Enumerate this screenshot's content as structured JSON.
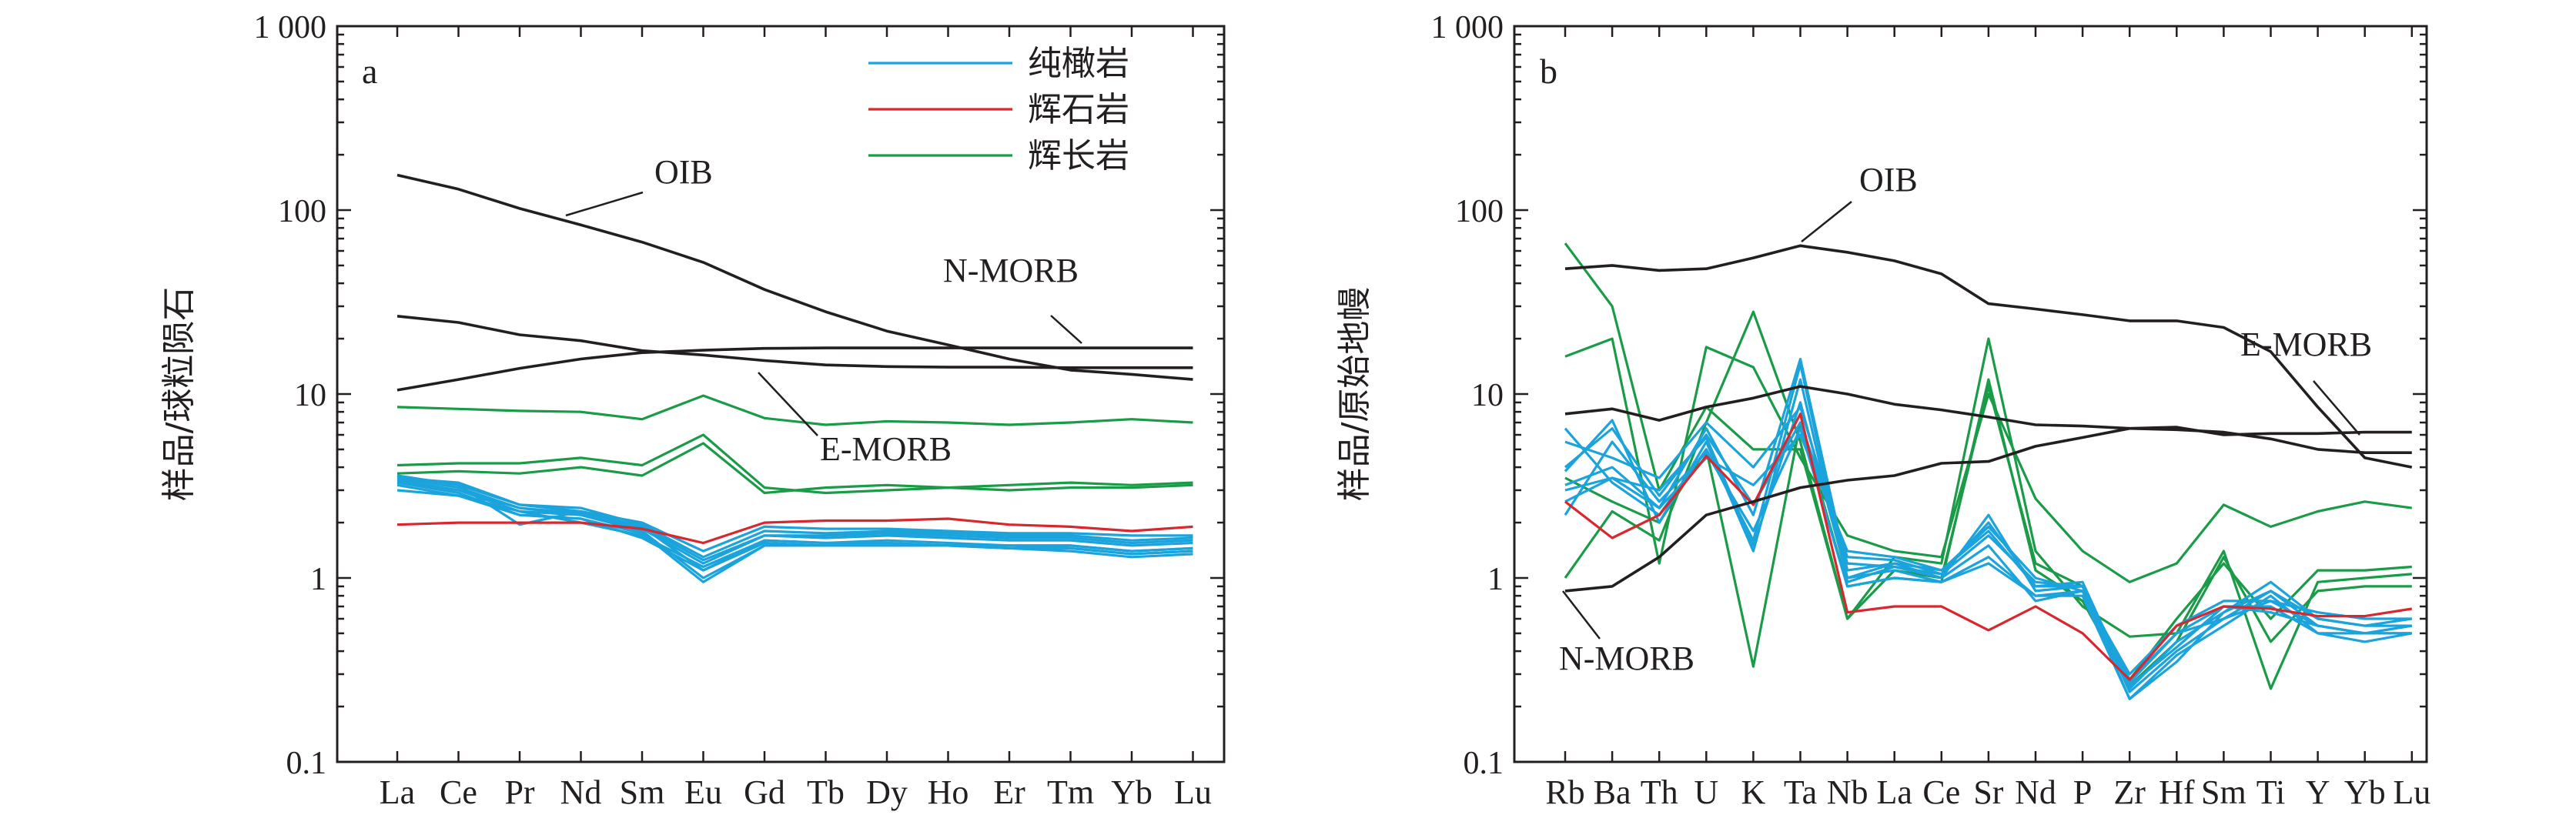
{
  "colors": {
    "axis": "#231f20",
    "dunite": "#1ba3dc",
    "pyroxenite": "#d7282f",
    "gabbro": "#1a9b48",
    "reference": "#231f20"
  },
  "chart_data": [
    {
      "type": "line",
      "panel": "a",
      "ylabel": "样品/球粒陨石",
      "yscale": "log",
      "ylim": [
        0.1,
        1000
      ],
      "yticks": [
        "0.1",
        "1",
        "10",
        "100",
        "1 000"
      ],
      "categories": [
        "La",
        "Ce",
        "Pr",
        "Nd",
        "Sm",
        "Eu",
        "Gd",
        "Tb",
        "Dy",
        "Ho",
        "Er",
        "Tm",
        "Yb",
        "Lu"
      ],
      "legend": [
        {
          "label": "纯橄岩",
          "color": "#1ba3dc"
        },
        {
          "label": "辉石岩",
          "color": "#d7282f"
        },
        {
          "label": "辉长岩",
          "color": "#1a9b48"
        }
      ],
      "reference": [
        {
          "name": "OIB",
          "values": [
            155,
            130,
            102,
            83,
            67,
            52,
            37,
            28,
            22,
            18.5,
            15.5,
            13.5,
            12.8,
            12
          ]
        },
        {
          "name": "N-MORB",
          "values": [
            10.5,
            12,
            13.8,
            15.5,
            16.8,
            17.3,
            17.7,
            17.8,
            17.8,
            17.8,
            17.8,
            17.8,
            17.8,
            17.8
          ]
        },
        {
          "name": "E-MORB",
          "values": [
            26.5,
            24.5,
            21,
            19.5,
            17.2,
            16.3,
            15.2,
            14.4,
            14.1,
            14,
            14,
            13.9,
            13.9,
            13.9
          ]
        }
      ],
      "reference_labels": [
        {
          "name": "OIB",
          "text": "OIB"
        },
        {
          "name": "N-MORB",
          "text": "N-MORB"
        },
        {
          "name": "E-MORB",
          "text": "E-MORB"
        }
      ],
      "series": [
        {
          "group": "dunite",
          "values": [
            3.6,
            3.2,
            2.5,
            2.3,
            1.9,
            1.1,
            1.6,
            1.55,
            1.6,
            1.55,
            1.5,
            1.5,
            1.4,
            1.45
          ]
        },
        {
          "group": "dunite",
          "values": [
            3.4,
            3.0,
            2.3,
            2.2,
            1.8,
            1.0,
            1.5,
            1.5,
            1.5,
            1.5,
            1.45,
            1.45,
            1.35,
            1.4
          ]
        },
        {
          "group": "dunite",
          "values": [
            3.5,
            3.1,
            2.4,
            2.25,
            1.85,
            1.2,
            1.7,
            1.65,
            1.7,
            1.65,
            1.6,
            1.6,
            1.5,
            1.55
          ]
        },
        {
          "group": "dunite",
          "values": [
            3.3,
            2.9,
            2.2,
            2.1,
            1.75,
            0.95,
            1.5,
            1.5,
            1.55,
            1.5,
            1.5,
            1.45,
            1.35,
            1.4
          ]
        },
        {
          "group": "dunite",
          "values": [
            3.5,
            3.3,
            2.5,
            2.4,
            1.95,
            1.3,
            1.8,
            1.75,
            1.8,
            1.75,
            1.7,
            1.7,
            1.6,
            1.65
          ]
        },
        {
          "group": "dunite",
          "values": [
            3.2,
            2.8,
            2.3,
            2.0,
            1.7,
            1.15,
            1.6,
            1.55,
            1.55,
            1.5,
            1.5,
            1.5,
            1.4,
            1.45
          ]
        },
        {
          "group": "dunite",
          "values": [
            3.0,
            2.8,
            2.2,
            2.1,
            1.65,
            1.1,
            1.55,
            1.5,
            1.5,
            1.5,
            1.45,
            1.4,
            1.3,
            1.35
          ]
        },
        {
          "group": "dunite",
          "values": [
            3.6,
            3.2,
            1.95,
            2.3,
            2.0,
            1.4,
            1.9,
            1.85,
            1.85,
            1.8,
            1.75,
            1.75,
            1.7,
            1.7
          ]
        },
        {
          "group": "dunite",
          "values": [
            3.3,
            3.0,
            2.4,
            2.2,
            1.9,
            1.25,
            1.7,
            1.7,
            1.75,
            1.7,
            1.65,
            1.65,
            1.55,
            1.6
          ]
        },
        {
          "group": "pyroxenite",
          "values": [
            1.95,
            2.0,
            2.0,
            2.0,
            1.85,
            1.55,
            2.0,
            2.05,
            2.05,
            2.1,
            1.95,
            1.9,
            1.8,
            1.9
          ]
        },
        {
          "group": "gabbro",
          "values": [
            8.5,
            8.3,
            8.1,
            8.0,
            7.3,
            9.8,
            7.4,
            6.8,
            7.1,
            7.0,
            6.8,
            7.0,
            7.3,
            7.0
          ]
        },
        {
          "group": "gabbro",
          "values": [
            4.1,
            4.2,
            4.2,
            4.5,
            4.1,
            6.0,
            3.1,
            2.9,
            3.0,
            3.1,
            3.0,
            3.1,
            3.1,
            3.2
          ]
        },
        {
          "group": "gabbro",
          "values": [
            3.7,
            3.8,
            3.7,
            4.0,
            3.6,
            5.4,
            2.9,
            3.1,
            3.2,
            3.1,
            3.2,
            3.3,
            3.2,
            3.3
          ]
        }
      ]
    },
    {
      "type": "line",
      "panel": "b",
      "ylabel": "样品/原始地幔",
      "yscale": "log",
      "ylim": [
        0.1,
        1000
      ],
      "yticks": [
        "0.1",
        "1",
        "10",
        "100",
        "1 000"
      ],
      "categories": [
        "Rb",
        "Ba",
        "Th",
        "U",
        "K",
        "Ta",
        "Nb",
        "La",
        "Ce",
        "Sr",
        "Nd",
        "P",
        "Zr",
        "Hf",
        "Sm",
        "Ti",
        "Y",
        "Yb",
        "Lu"
      ],
      "reference": [
        {
          "name": "OIB",
          "values": [
            48,
            50,
            47,
            48,
            55,
            64,
            59,
            53,
            45,
            31,
            29,
            27,
            25,
            25,
            23,
            17,
            8.5,
            4.5,
            4
          ]
        },
        {
          "name": "E-MORB",
          "values": [
            7.8,
            8.3,
            7.2,
            8.5,
            9.5,
            11,
            10,
            8.8,
            8.2,
            7.5,
            6.8,
            6.7,
            6.5,
            6.4,
            6.2,
            5.7,
            5.0,
            4.8,
            4.8
          ]
        },
        {
          "name": "N-MORB",
          "values": [
            0.85,
            0.9,
            1.3,
            2.2,
            2.6,
            3.1,
            3.4,
            3.6,
            4.2,
            4.3,
            5.2,
            5.8,
            6.5,
            6.6,
            6.0,
            6.1,
            6.1,
            6.2,
            6.2
          ]
        }
      ],
      "reference_labels": [
        {
          "name": "OIB",
          "text": "OIB"
        },
        {
          "name": "E-MORB",
          "text": "E-MORB"
        },
        {
          "name": "N-MORB",
          "text": "N-MORB"
        }
      ],
      "series": [
        {
          "group": "dunite",
          "values": [
            6.5,
            3.3,
            2.2,
            5.0,
            1.6,
            14.5,
            1.0,
            1.2,
            1.0,
            2.2,
            0.85,
            0.9,
            0.24,
            0.4,
            0.6,
            0.75,
            0.55,
            0.5,
            0.5
          ]
        },
        {
          "group": "dunite",
          "values": [
            3.8,
            7.2,
            2.0,
            5.5,
            1.4,
            12.0,
            0.95,
            1.15,
            1.0,
            1.5,
            0.75,
            0.85,
            0.22,
            0.35,
            0.65,
            0.95,
            0.6,
            0.55,
            0.55
          ]
        },
        {
          "group": "dunite",
          "values": [
            3.2,
            4.0,
            2.4,
            6.5,
            2.2,
            15.5,
            1.1,
            1.2,
            1.1,
            1.8,
            0.9,
            0.95,
            0.26,
            0.42,
            0.7,
            0.7,
            0.5,
            0.5,
            0.55
          ]
        },
        {
          "group": "dunite",
          "values": [
            2.2,
            5.5,
            2.6,
            4.8,
            1.8,
            6.5,
            0.9,
            1.0,
            0.95,
            1.3,
            0.8,
            0.85,
            0.25,
            0.45,
            0.65,
            0.85,
            0.6,
            0.55,
            0.6
          ]
        },
        {
          "group": "dunite",
          "values": [
            3.0,
            3.5,
            3.0,
            5.8,
            1.5,
            9.0,
            1.0,
            1.1,
            0.95,
            1.2,
            0.8,
            0.8,
            0.22,
            0.38,
            0.55,
            0.8,
            0.5,
            0.45,
            0.5
          ]
        },
        {
          "group": "dunite",
          "values": [
            4.0,
            6.5,
            2.8,
            6.0,
            2.5,
            7.0,
            1.3,
            1.25,
            1.05,
            1.7,
            0.95,
            0.9,
            0.28,
            0.5,
            0.7,
            0.65,
            0.55,
            0.5,
            0.55
          ]
        },
        {
          "group": "dunite",
          "values": [
            2.6,
            3.5,
            2.4,
            4.5,
            3.2,
            6.0,
            1.4,
            1.3,
            1.1,
            1.9,
            1.0,
            0.85,
            0.3,
            0.55,
            0.75,
            0.75,
            0.65,
            0.6,
            0.6
          ]
        },
        {
          "group": "dunite",
          "values": [
            5.5,
            4.5,
            3.5,
            7.0,
            4.0,
            8.5,
            1.2,
            1.15,
            1.05,
            2.0,
            0.9,
            0.9,
            0.27,
            0.5,
            0.6,
            0.85,
            0.55,
            0.5,
            0.5
          ]
        },
        {
          "group": "pyroxenite",
          "values": [
            2.6,
            1.65,
            2.2,
            4.6,
            2.5,
            7.8,
            0.65,
            0.7,
            0.7,
            0.52,
            0.7,
            0.5,
            0.28,
            0.55,
            0.7,
            0.68,
            0.62,
            0.62,
            0.68
          ]
        },
        {
          "group": "gabbro",
          "values": [
            66,
            30,
            3.0,
            8.5,
            5.0,
            5.0,
            0.6,
            1.3,
            1.2,
            20,
            1.4,
            0.7,
            0.48,
            0.5,
            1.4,
            0.25,
            0.95,
            1.0,
            1.05
          ]
        },
        {
          "group": "gabbro",
          "values": [
            16,
            20,
            1.2,
            18,
            14,
            4.5,
            1.7,
            1.4,
            1.3,
            10,
            2.7,
            1.4,
            0.95,
            1.2,
            2.5,
            1.9,
            2.3,
            2.6,
            2.4
          ]
        },
        {
          "group": "gabbro",
          "values": [
            1.0,
            2.3,
            1.6,
            7.0,
            28,
            5.5,
            0.6,
            1.1,
            1.0,
            11,
            1.2,
            0.9,
            0.28,
            0.6,
            1.2,
            0.6,
            1.1,
            1.1,
            1.15
          ]
        },
        {
          "group": "gabbro",
          "values": [
            3.5,
            2.6,
            2.0,
            5.0,
            0.33,
            7.0,
            0.9,
            1.0,
            0.95,
            12,
            1.1,
            0.75,
            0.26,
            0.45,
            1.3,
            0.45,
            0.85,
            0.9,
            0.9
          ]
        }
      ]
    }
  ]
}
